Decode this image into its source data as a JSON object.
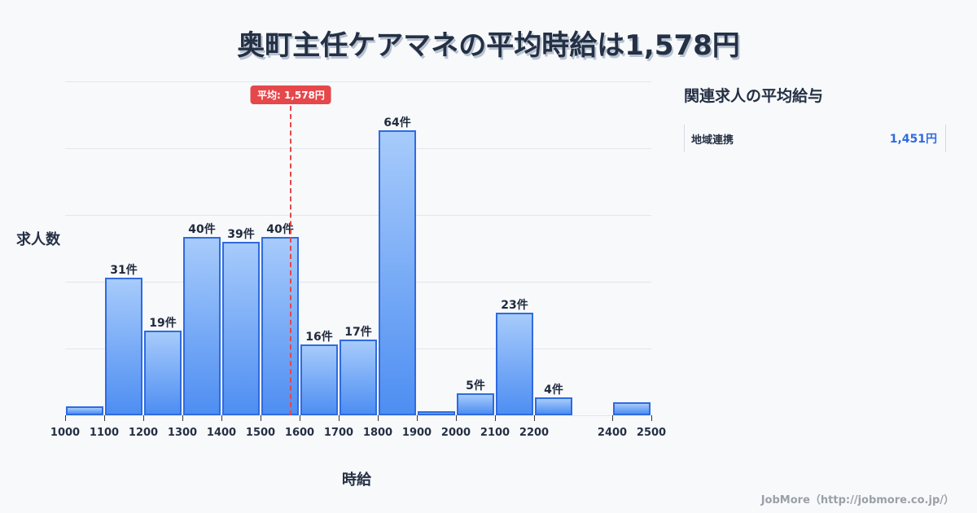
{
  "title": "奥町主任ケアマネの平均時給は1,578円",
  "ylabel": "求人数",
  "xlabel": "時給",
  "average_badge": "平均: 1,578円",
  "side_panel": {
    "title": "関連求人の平均給与",
    "items": [
      {
        "label": "地域連携",
        "value": "1,451円"
      }
    ]
  },
  "footer": "JobMore（http://jobmore.co.jp/）",
  "colors": {
    "bar": "#4e8ef2",
    "bar_border": "#2f6be0",
    "average_line": "#e5474b",
    "accent_value": "#2f6be0"
  },
  "chart_data": {
    "type": "bar",
    "title": "奥町主任ケアマネの平均時給は1,578円",
    "xlabel": "時給",
    "ylabel": "求人数",
    "bins": [
      {
        "from": 1000,
        "to": 1100,
        "count": 2,
        "label": ""
      },
      {
        "from": 1100,
        "to": 1200,
        "count": 31,
        "label": "31件"
      },
      {
        "from": 1200,
        "to": 1300,
        "count": 19,
        "label": "19件"
      },
      {
        "from": 1300,
        "to": 1400,
        "count": 40,
        "label": "40件"
      },
      {
        "from": 1400,
        "to": 1500,
        "count": 39,
        "label": "39件"
      },
      {
        "from": 1500,
        "to": 1600,
        "count": 40,
        "label": "40件"
      },
      {
        "from": 1600,
        "to": 1700,
        "count": 16,
        "label": "16件"
      },
      {
        "from": 1700,
        "to": 1800,
        "count": 17,
        "label": "17件"
      },
      {
        "from": 1800,
        "to": 1900,
        "count": 64,
        "label": "64件"
      },
      {
        "from": 1900,
        "to": 2000,
        "count": 1,
        "label": ""
      },
      {
        "from": 2000,
        "to": 2100,
        "count": 5,
        "label": "5件"
      },
      {
        "from": 2100,
        "to": 2200,
        "count": 23,
        "label": "23件"
      },
      {
        "from": 2200,
        "to": 2300,
        "count": 4,
        "label": "4件"
      },
      {
        "from": 2400,
        "to": 2500,
        "count": 3,
        "label": ""
      }
    ],
    "categories": [
      "1000",
      "1100",
      "1200",
      "1300",
      "1400",
      "1500",
      "1600",
      "1700",
      "1800",
      "1900",
      "2000",
      "2100",
      "2200",
      "2400"
    ],
    "values": [
      2,
      31,
      19,
      40,
      39,
      40,
      16,
      17,
      64,
      1,
      5,
      23,
      4,
      3
    ],
    "x_ticks": [
      1000,
      1100,
      1200,
      1300,
      1400,
      1500,
      1600,
      1700,
      1800,
      1900,
      2000,
      2100,
      2200,
      2400,
      2500
    ],
    "xlim": [
      1000,
      2500
    ],
    "ylim": [
      0,
      75
    ],
    "grid": true,
    "gridline_count": 5,
    "average": 1578,
    "average_label": "平均: 1,578円"
  }
}
